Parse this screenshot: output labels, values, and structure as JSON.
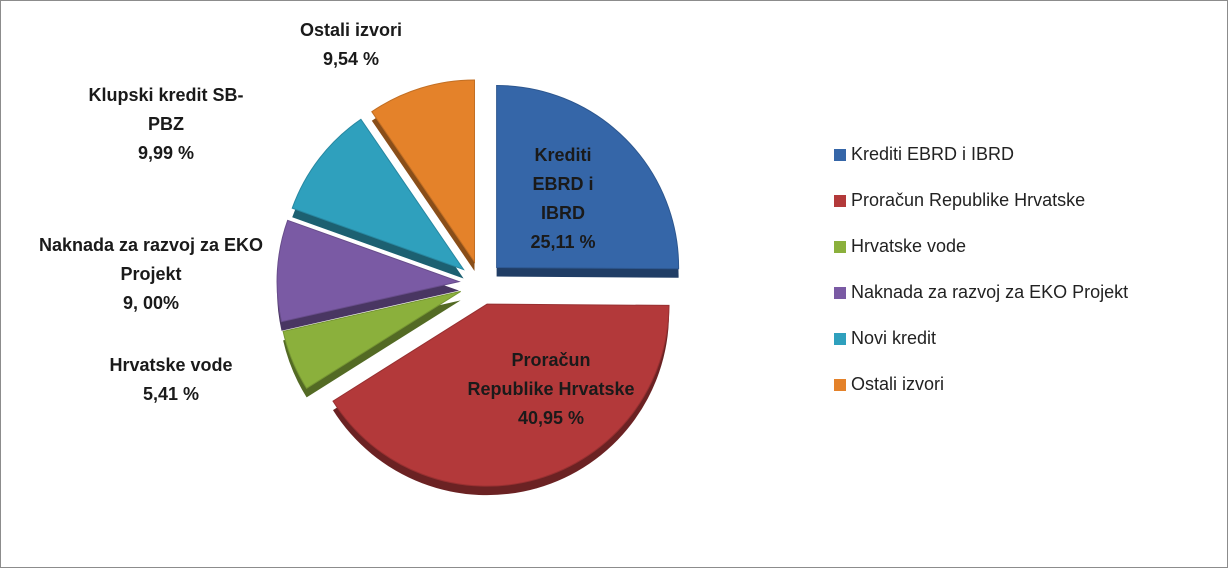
{
  "chart_data": {
    "type": "pie",
    "categories": [
      "Krediti EBRD i IBRD",
      "Proračun Republike Hrvatske",
      "Hrvatske vode",
      "Naknada za razvoj za EKO Projekt",
      "Novi kredit",
      "Ostali izvori"
    ],
    "values": [
      25.11,
      40.95,
      5.41,
      9.0,
      9.99,
      9.54
    ],
    "value_labels": [
      "25,11 %",
      "40,95 %",
      "5,41 %",
      "9, 00%",
      "9,99 %",
      "9,54 %"
    ],
    "data_label_names": [
      "Krediti EBRD i IBRD",
      "Proračun Republike Hrvatske",
      "Hrvatske vode",
      "Naknada za razvoj za EKO Projekt",
      "Klupski kredit SB-PBZ",
      "Ostali izvori"
    ],
    "colors": [
      "#3566a8",
      "#b3393a",
      "#8bb03c",
      "#7a5aa4",
      "#2fa0bd",
      "#e4822a"
    ],
    "legend": "right"
  }
}
